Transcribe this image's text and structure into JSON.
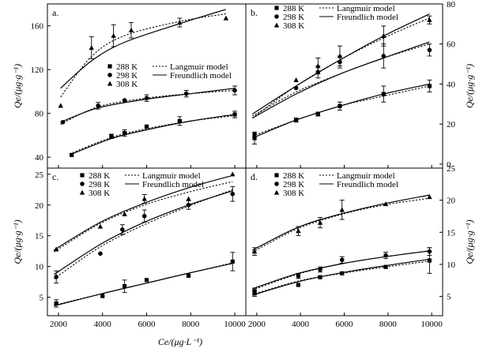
{
  "figure": {
    "shared_xlabel": "Ce/(μg·L⁻¹)",
    "shared_ylabel": "Qe/(μg·g⁻¹)",
    "colors": {
      "axis": "#000000",
      "data": "#000000",
      "background": "#ffffff"
    }
  },
  "chart_data": [
    {
      "panel": "a.",
      "type": "scatter",
      "title": "",
      "xlabel": "",
      "ylabel": "Qe/(μg·g⁻¹)",
      "xlim": [
        1500,
        10500
      ],
      "ylim": [
        30,
        180
      ],
      "yticks": [
        40,
        80,
        120,
        160
      ],
      "xticks": [],
      "y_axis_side": "left",
      "legend": {
        "placement": "center",
        "markers": [
          "288 K",
          "298 K",
          "308 K"
        ],
        "lines": [
          "Langmuir model",
          "Freundlich model"
        ]
      },
      "series": [
        {
          "name": "288 K",
          "marker": "square",
          "points": [
            [
              2600,
              42
            ],
            [
              4400,
              59
            ],
            [
              5000,
              62
            ],
            [
              6000,
              68
            ],
            [
              7500,
              73
            ],
            [
              10000,
              79
            ]
          ],
          "errors": [
            0,
            2,
            3,
            0,
            4,
            3
          ],
          "langmuir": [
            [
              2500,
              43
            ],
            [
              4400,
              58
            ],
            [
              6000,
              66
            ],
            [
              8000,
              73
            ],
            [
              10000,
              78
            ]
          ],
          "freundlich": [
            [
              2500,
              42
            ],
            [
              4400,
              57
            ],
            [
              6000,
              65
            ],
            [
              8000,
              73
            ],
            [
              10000,
              79
            ]
          ]
        },
        {
          "name": "298 K",
          "marker": "circle",
          "points": [
            [
              2200,
              72
            ],
            [
              3800,
              87
            ],
            [
              5000,
              92
            ],
            [
              6000,
              94
            ],
            [
              7800,
              98
            ],
            [
              10000,
              101
            ]
          ],
          "errors": [
            0,
            3,
            0,
            3,
            3,
            4
          ],
          "langmuir": [
            [
              2100,
              70
            ],
            [
              3800,
              86
            ],
            [
              6000,
              94
            ],
            [
              8000,
              98
            ],
            [
              10000,
              101
            ]
          ],
          "freundlich": [
            [
              2100,
              72
            ],
            [
              3800,
              85
            ],
            [
              6000,
              93
            ],
            [
              8000,
              98
            ],
            [
              10000,
              103
            ]
          ]
        },
        {
          "name": "308 K",
          "marker": "triangle",
          "points": [
            [
              2100,
              87
            ],
            [
              3500,
              140
            ],
            [
              4500,
              151
            ],
            [
              5300,
              156
            ],
            [
              7500,
              163
            ],
            [
              9600,
              167
            ]
          ],
          "errors": [
            0,
            10,
            10,
            7,
            4,
            0
          ],
          "langmuir": [
            [
              2100,
              95
            ],
            [
              3500,
              132
            ],
            [
              5000,
              151
            ],
            [
              7500,
              164
            ],
            [
              9600,
              171
            ]
          ],
          "freundlich": [
            [
              2100,
              103
            ],
            [
              3500,
              128
            ],
            [
              5000,
              145
            ],
            [
              7500,
              162
            ],
            [
              9600,
              175
            ]
          ]
        }
      ]
    },
    {
      "panel": "b.",
      "type": "scatter",
      "title": "",
      "xlabel": "",
      "ylabel": "Qe/(μg·g⁻¹)",
      "xlim": [
        1500,
        10500
      ],
      "ylim": [
        -2,
        80
      ],
      "yticks": [
        0,
        20,
        40,
        60,
        80
      ],
      "xticks": [],
      "y_axis_side": "right",
      "legend": {
        "placement": "top",
        "markers": [
          "288 K",
          "298 K",
          "308 K"
        ],
        "lines": [
          "Langmuir model",
          "Freundlich model"
        ]
      },
      "series": [
        {
          "name": "288 K",
          "marker": "square",
          "points": [
            [
              1900,
              13
            ],
            [
              3800,
              22
            ],
            [
              4800,
              25
            ],
            [
              5800,
              29
            ],
            [
              7800,
              35
            ],
            [
              9900,
              39
            ]
          ],
          "errors": [
            3,
            1,
            1,
            2,
            4,
            3
          ],
          "langmuir": [
            [
              1800,
              14
            ],
            [
              3800,
              22
            ],
            [
              5800,
              29
            ],
            [
              7800,
              34
            ],
            [
              9900,
              39
            ]
          ],
          "freundlich": [
            [
              1800,
              13
            ],
            [
              3800,
              22
            ],
            [
              5800,
              29
            ],
            [
              7800,
              35
            ],
            [
              9900,
              40
            ]
          ]
        },
        {
          "name": "298 K",
          "marker": "circle",
          "points": [
            [
              1900,
              15
            ],
            [
              3800,
              38
            ],
            [
              4800,
              46
            ],
            [
              5800,
              51
            ],
            [
              7800,
              54
            ],
            [
              9900,
              57
            ]
          ],
          "errors": [
            0,
            0,
            3,
            3,
            6,
            3
          ],
          "langmuir": [
            [
              1800,
              24
            ],
            [
              3800,
              36
            ],
            [
              5800,
              45
            ],
            [
              7800,
              53
            ],
            [
              9900,
              60
            ]
          ],
          "freundlich": [
            [
              1800,
              23
            ],
            [
              3800,
              35
            ],
            [
              5800,
              45
            ],
            [
              7800,
              53
            ],
            [
              9900,
              61
            ]
          ]
        },
        {
          "name": "308 K",
          "marker": "triangle",
          "points": [
            [
              3800,
              42
            ],
            [
              4800,
              49
            ],
            [
              5800,
              54
            ],
            [
              7800,
              64
            ],
            [
              9900,
              72
            ]
          ],
          "errors": [
            0,
            4,
            5,
            5,
            2
          ],
          "langmuir": [
            [
              1800,
              23
            ],
            [
              3800,
              39
            ],
            [
              5800,
              52
            ],
            [
              7800,
              63
            ],
            [
              9900,
              73
            ]
          ],
          "freundlich": [
            [
              1800,
              25
            ],
            [
              3800,
              39
            ],
            [
              5800,
              52
            ],
            [
              7800,
              64
            ],
            [
              9900,
              75
            ]
          ]
        }
      ]
    },
    {
      "panel": "c.",
      "type": "scatter",
      "title": "",
      "xlabel": "Ce/(μg·L⁻¹)",
      "ylabel": "Qe/(μg·g⁻¹)",
      "xlim": [
        1500,
        10500
      ],
      "ylim": [
        2,
        26
      ],
      "yticks": [
        5,
        10,
        15,
        20,
        25
      ],
      "xticks": [
        2000,
        4000,
        6000,
        8000,
        10000
      ],
      "y_axis_side": "left",
      "legend": {
        "placement": "top",
        "markers": [
          "288 K",
          "298 K",
          "308 K"
        ],
        "lines": [
          "Langmuir model",
          "Freundlich model"
        ]
      },
      "series": [
        {
          "name": "288 K",
          "marker": "square",
          "points": [
            [
              1900,
              4
            ],
            [
              4000,
              5.2
            ],
            [
              5000,
              6.8
            ],
            [
              6000,
              7.8
            ],
            [
              7900,
              8.5
            ],
            [
              9900,
              10.8
            ]
          ],
          "errors": [
            0.6,
            0,
            1.0,
            0,
            0,
            1.5
          ],
          "langmuir": [
            [
              1800,
              3.7
            ],
            [
              4000,
              5.6
            ],
            [
              6000,
              7.3
            ],
            [
              8000,
              9.0
            ],
            [
              9900,
              10.6
            ]
          ],
          "freundlich": [
            [
              1800,
              3.6
            ],
            [
              4000,
              5.6
            ],
            [
              6000,
              7.3
            ],
            [
              8000,
              9.0
            ],
            [
              9900,
              10.5
            ]
          ]
        },
        {
          "name": "298 K",
          "marker": "circle",
          "points": [
            [
              1900,
              8.3
            ],
            [
              3900,
              12.1
            ],
            [
              4900,
              16
            ],
            [
              5900,
              18.2
            ],
            [
              7900,
              20
            ],
            [
              9900,
              21.8
            ]
          ],
          "errors": [
            1.0,
            0,
            0.8,
            1.0,
            0.7,
            1.2
          ],
          "langmuir": [
            [
              1800,
              8.0
            ],
            [
              3900,
              13.2
            ],
            [
              5900,
              16.8
            ],
            [
              7900,
              19.8
            ],
            [
              9900,
              22.5
            ]
          ],
          "freundlich": [
            [
              1800,
              8.7
            ],
            [
              3900,
              13.6
            ],
            [
              5900,
              17.2
            ],
            [
              7900,
              20.0
            ],
            [
              9900,
              22.3
            ]
          ]
        },
        {
          "name": "308 K",
          "marker": "triangle",
          "points": [
            [
              1900,
              12.8
            ],
            [
              3900,
              16.5
            ],
            [
              5000,
              18.5
            ],
            [
              5900,
              21
            ],
            [
              7900,
              21
            ],
            [
              9900,
              25
            ]
          ],
          "errors": [
            0,
            0,
            0,
            0.7,
            0,
            0
          ],
          "langmuir": [
            [
              1800,
              12.4
            ],
            [
              3900,
              17.0
            ],
            [
              5900,
              20.0
            ],
            [
              7900,
              22.1
            ],
            [
              9900,
              23.8
            ]
          ],
          "freundlich": [
            [
              1800,
              12.7
            ],
            [
              3900,
              17.2
            ],
            [
              5900,
              20.3
            ],
            [
              7900,
              22.8
            ],
            [
              9900,
              24.8
            ]
          ]
        }
      ]
    },
    {
      "panel": "d.",
      "type": "scatter",
      "title": "",
      "xlabel": "",
      "ylabel": "Qe/(μg·g⁻¹)",
      "xlim": [
        1500,
        10500
      ],
      "ylim": [
        2,
        25
      ],
      "yticks": [
        5,
        10,
        15,
        20,
        25
      ],
      "xticks": [
        2000,
        4000,
        6000,
        8000,
        10000
      ],
      "y_axis_side": "right",
      "legend": {
        "placement": "top",
        "markers": [
          "288 K",
          "298 K",
          "308 K"
        ],
        "lines": [
          "Langmuir model",
          "Freundlich model"
        ]
      },
      "series": [
        {
          "name": "288 K",
          "marker": "square",
          "points": [
            [
              1900,
              5.5
            ],
            [
              3900,
              6.8
            ],
            [
              4900,
              8.0
            ],
            [
              5900,
              8.6
            ],
            [
              7900,
              9.6
            ],
            [
              9900,
              10.6
            ]
          ],
          "errors": [
            0.5,
            0,
            0,
            0,
            0,
            2.0
          ],
          "langmuir": [
            [
              1800,
              5.3
            ],
            [
              3900,
              7.4
            ],
            [
              5900,
              8.6
            ],
            [
              7900,
              9.6
            ],
            [
              9900,
              10.5
            ]
          ],
          "freundlich": [
            [
              1800,
              5.2
            ],
            [
              3900,
              7.3
            ],
            [
              5900,
              8.7
            ],
            [
              7900,
              9.8
            ],
            [
              9900,
              10.8
            ]
          ]
        },
        {
          "name": "298 K",
          "marker": "circle",
          "points": [
            [
              1900,
              5.8
            ],
            [
              3900,
              8.2
            ],
            [
              4900,
              9.2
            ],
            [
              5900,
              10.7
            ],
            [
              7900,
              11.4
            ],
            [
              9900,
              12.0
            ]
          ],
          "errors": [
            0.5,
            0.4,
            0.4,
            0.5,
            0.5,
            0.6
          ],
          "langmuir": [
            [
              1800,
              6.0
            ],
            [
              3900,
              8.5
            ],
            [
              5900,
              10.1
            ],
            [
              7900,
              11.2
            ],
            [
              9900,
              12.1
            ]
          ],
          "freundlich": [
            [
              1800,
              6.2
            ],
            [
              3900,
              8.6
            ],
            [
              5900,
              10.1
            ],
            [
              7900,
              11.2
            ],
            [
              9900,
              12.1
            ]
          ]
        },
        {
          "name": "308 K",
          "marker": "triangle",
          "points": [
            [
              1900,
              12
            ],
            [
              3900,
              15.2
            ],
            [
              4900,
              16.5
            ],
            [
              5900,
              18.5
            ],
            [
              7900,
              19.4
            ],
            [
              9900,
              20.5
            ]
          ],
          "errors": [
            0.6,
            0.7,
            0.8,
            1.5,
            0,
            0
          ],
          "langmuir": [
            [
              1800,
              11.9
            ],
            [
              3900,
              15.6
            ],
            [
              5900,
              17.8
            ],
            [
              7900,
              19.3
            ],
            [
              9900,
              20.3
            ]
          ],
          "freundlich": [
            [
              1800,
              12.2
            ],
            [
              3900,
              15.8
            ],
            [
              5900,
              17.9
            ],
            [
              7900,
              19.5
            ],
            [
              9900,
              20.8
            ]
          ]
        }
      ]
    }
  ]
}
